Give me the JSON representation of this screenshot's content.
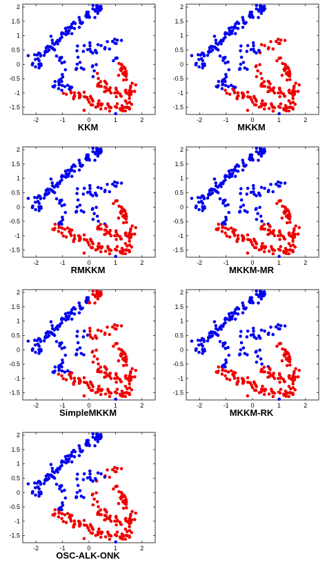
{
  "figure": {
    "colors": {
      "cluster_a": "#0000ee",
      "cluster_b": "#ee0000",
      "axis": "#000000"
    }
  },
  "chart_data": [
    {
      "type": "scatter",
      "title": "KKM",
      "xlim": [
        -2.5,
        2.5
      ],
      "ylim": [
        -1.75,
        2.1
      ],
      "xticks": [
        -2,
        -1,
        0,
        1,
        2
      ],
      "yticks": [
        -1.5,
        -1,
        -0.5,
        0,
        0.5,
        1,
        1.5,
        2
      ],
      "xtick_labels": [
        "-2",
        "-1",
        "0",
        "1",
        "2"
      ],
      "ytick_labels": [
        "-1.5",
        "-1",
        "-0.5",
        "0",
        "0.5",
        "1",
        "1.5",
        "2"
      ],
      "grid": false,
      "legend": "none",
      "red_region": [
        [
          0.2,
          0.7
        ],
        [
          1.8,
          0.7
        ],
        [
          1.8,
          -1.7
        ],
        [
          -1.0,
          -1.7
        ],
        [
          -1.0,
          -0.9
        ],
        [
          0.2,
          -0.9
        ]
      ],
      "blue_region": [
        [
          -2.2,
          -0.3
        ],
        [
          -2.2,
          0.5
        ],
        [
          0.5,
          2.1
        ],
        [
          1.1,
          0.2
        ],
        [
          -0.3,
          -0.6
        ],
        [
          -1.5,
          -0.8
        ]
      ]
    },
    {
      "type": "scatter",
      "title": "MKKM",
      "xlim": [
        -2.5,
        2.5
      ],
      "ylim": [
        -1.75,
        2.1
      ],
      "xticks": [
        -2,
        -1,
        0,
        1,
        2
      ],
      "yticks": [
        -1.5,
        -1,
        -0.5,
        0,
        0.5,
        1,
        1.5,
        2
      ],
      "xtick_labels": [
        "-2",
        "-1",
        "0",
        "1",
        "2"
      ],
      "ytick_labels": [
        "-1.5",
        "-1",
        "-0.5",
        "0",
        "0.5",
        "1",
        "1.5",
        "2"
      ],
      "grid": false,
      "legend": "none",
      "red_region": [
        [
          0.1,
          0.95
        ],
        [
          1.8,
          0.95
        ],
        [
          1.8,
          -1.7
        ],
        [
          -1.0,
          -1.7
        ],
        [
          -1.1,
          -0.85
        ],
        [
          0.1,
          -0.85
        ]
      ],
      "blue_region": [
        [
          -2.2,
          -0.3
        ],
        [
          -2.2,
          0.5
        ],
        [
          0.5,
          2.1
        ],
        [
          0.3,
          0.5
        ],
        [
          -0.3,
          -0.5
        ],
        [
          -1.5,
          -0.6
        ]
      ]
    },
    {
      "type": "scatter",
      "title": "RMKKM",
      "xlim": [
        -2.5,
        2.5
      ],
      "ylim": [
        -1.75,
        2.1
      ],
      "xticks": [
        -2,
        -1,
        0,
        1,
        2
      ],
      "yticks": [
        -1.5,
        -1,
        -0.5,
        0,
        0.5,
        1,
        1.5,
        2
      ],
      "xtick_labels": [
        "-2",
        "-1",
        "0",
        "1",
        "2"
      ],
      "ytick_labels": [
        "-1.5",
        "-1",
        "-0.5",
        "0",
        "0.5",
        "1",
        "1.5",
        "2"
      ],
      "grid": false,
      "legend": "none",
      "red_region": [
        [
          0.6,
          0.5
        ],
        [
          1.8,
          0.5
        ],
        [
          1.8,
          -1.7
        ],
        [
          -1.4,
          -1.7
        ],
        [
          -1.5,
          -0.6
        ],
        [
          0.6,
          -0.6
        ]
      ],
      "blue_region": [
        [
          -2.2,
          -0.3
        ],
        [
          -2.2,
          0.5
        ],
        [
          0.5,
          2.1
        ],
        [
          1.2,
          0.8
        ],
        [
          -0.5,
          0.2
        ],
        [
          -1.5,
          -0.2
        ]
      ]
    },
    {
      "type": "scatter",
      "title": "MKKM-MR",
      "xlim": [
        -2.5,
        2.5
      ],
      "ylim": [
        -1.75,
        2.1
      ],
      "xticks": [
        -2,
        -1,
        0,
        1,
        2
      ],
      "yticks": [
        -1.5,
        -1,
        -0.5,
        0,
        0.5,
        1,
        1.5,
        2
      ],
      "xtick_labels": [
        "-2",
        "-1",
        "0",
        "1",
        "2"
      ],
      "ytick_labels": [
        "-1.5",
        "-1",
        "-0.5",
        "0",
        "0.5",
        "1",
        "1.5",
        "2"
      ],
      "grid": false,
      "legend": "none",
      "red_region": [
        [
          0.8,
          0.45
        ],
        [
          1.8,
          0.45
        ],
        [
          1.8,
          -1.7
        ],
        [
          -1.4,
          -1.7
        ],
        [
          -1.5,
          -0.6
        ],
        [
          0.8,
          -0.6
        ]
      ],
      "blue_region": [
        [
          -2.2,
          -0.3
        ],
        [
          -2.2,
          0.5
        ],
        [
          0.5,
          2.1
        ],
        [
          1.2,
          0.8
        ],
        [
          -0.5,
          0.2
        ],
        [
          -1.5,
          -0.2
        ]
      ]
    },
    {
      "type": "scatter",
      "title": "SimpleMKKM",
      "xlim": [
        -2.5,
        2.5
      ],
      "ylim": [
        -1.75,
        2.1
      ],
      "xticks": [
        -2,
        -1,
        0,
        1,
        2
      ],
      "yticks": [
        -1.5,
        -1,
        -0.5,
        0,
        0.5,
        1,
        1.5,
        2
      ],
      "xtick_labels": [
        "-2",
        "-1",
        "0",
        "1",
        "2"
      ],
      "ytick_labels": [
        "-1.5",
        "-1",
        "-0.5",
        "0",
        "0.5",
        "1",
        "1.5",
        "2"
      ],
      "grid": false,
      "legend": "none",
      "red_region": [
        [
          0.0,
          2.1
        ],
        [
          1.8,
          2.1
        ],
        [
          1.8,
          -1.7
        ],
        [
          -1.2,
          -1.7
        ],
        [
          -1.2,
          -0.8
        ],
        [
          0.0,
          -0.8
        ]
      ],
      "blue_region": [
        [
          -2.2,
          -0.3
        ],
        [
          -2.2,
          0.5
        ],
        [
          0.0,
          1.9
        ],
        [
          0.0,
          0.5
        ],
        [
          -0.5,
          -0.3
        ],
        [
          -1.5,
          -0.5
        ]
      ]
    },
    {
      "type": "scatter",
      "title": "MKKM-RK",
      "xlim": [
        -2.5,
        2.5
      ],
      "ylim": [
        -1.75,
        2.1
      ],
      "xticks": [
        -2,
        -1,
        0,
        1,
        2
      ],
      "yticks": [
        -1.5,
        -1,
        -0.5,
        0,
        0.5,
        1,
        1.5,
        2
      ],
      "xtick_labels": [
        "-2",
        "-1",
        "0",
        "1",
        "2"
      ],
      "ytick_labels": [
        "-1.5",
        "-1",
        "-0.5",
        "0",
        "0.5",
        "1",
        "1.5",
        "2"
      ],
      "grid": false,
      "legend": "none",
      "red_region": [
        [
          0.7,
          0.5
        ],
        [
          1.8,
          0.5
        ],
        [
          1.8,
          -1.7
        ],
        [
          -1.4,
          -1.7
        ],
        [
          -1.5,
          -0.6
        ],
        [
          0.7,
          -0.6
        ]
      ],
      "blue_region": [
        [
          -2.2,
          -0.3
        ],
        [
          -2.2,
          0.5
        ],
        [
          0.5,
          2.1
        ],
        [
          1.1,
          0.8
        ],
        [
          -0.5,
          0.2
        ],
        [
          -1.5,
          -0.2
        ]
      ]
    },
    {
      "type": "scatter",
      "title": "OSC-ALK-ONK",
      "xlim": [
        -2.5,
        2.5
      ],
      "ylim": [
        -1.75,
        2.1
      ],
      "xticks": [
        -2,
        -1,
        0,
        1,
        2
      ],
      "yticks": [
        -1.5,
        -1,
        -0.5,
        0,
        0.5,
        1,
        1.5,
        2
      ],
      "xtick_labels": [
        "-2",
        "-1",
        "0",
        "1",
        "2"
      ],
      "ytick_labels": [
        "-1.5",
        "-1",
        "-0.5",
        "0",
        "0.5",
        "1",
        "1.5",
        "2"
      ],
      "grid": false,
      "legend": "none",
      "red_region": [
        [
          0.1,
          0.95
        ],
        [
          1.8,
          0.95
        ],
        [
          1.8,
          -1.7
        ],
        [
          -1.3,
          -1.7
        ],
        [
          -1.4,
          -0.6
        ],
        [
          0.1,
          -0.6
        ]
      ],
      "blue_region": [
        [
          -2.2,
          -0.3
        ],
        [
          -2.2,
          0.5
        ],
        [
          0.5,
          2.1
        ],
        [
          0.6,
          0.5
        ],
        [
          -0.5,
          0.2
        ],
        [
          -1.5,
          -0.2
        ]
      ]
    }
  ]
}
